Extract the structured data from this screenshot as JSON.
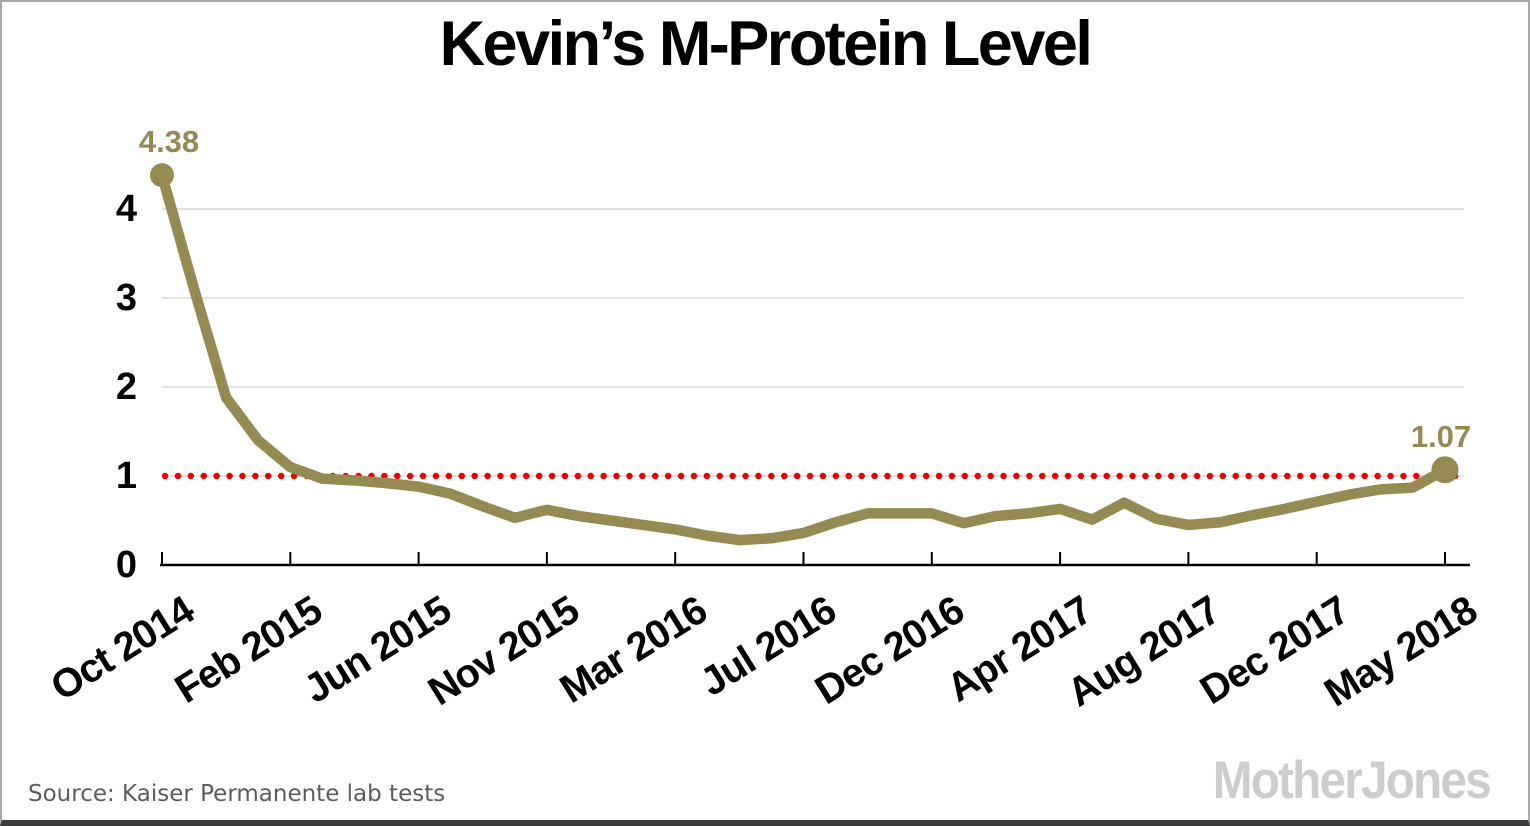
{
  "page": {
    "title": "Kevin’s M-Protein Level",
    "source": "Source: Kaiser Permanente lab tests",
    "logo": "MotherJones"
  },
  "chart_data": {
    "type": "line",
    "title": "Kevin’s M-Protein Level",
    "series": [
      {
        "name": "M-Protein level",
        "values": [
          4.38,
          3.1,
          1.88,
          1.4,
          1.1,
          0.97,
          0.95,
          0.92,
          0.88,
          0.8,
          0.66,
          0.53,
          0.62,
          0.55,
          0.5,
          0.45,
          0.4,
          0.33,
          0.28,
          0.3,
          0.36,
          0.48,
          0.58,
          0.58,
          0.58,
          0.47,
          0.55,
          0.58,
          0.63,
          0.51,
          0.7,
          0.52,
          0.45,
          0.48,
          0.56,
          0.63,
          0.71,
          0.79,
          0.85,
          0.87,
          1.07
        ]
      }
    ],
    "x_tick_labels": [
      "Oct 2014",
      "Feb 2015",
      "Jun 2015",
      "Nov 2015",
      "Mar 2016",
      "Jul 2016",
      "Dec 2016",
      "Apr 2017",
      "Aug 2017",
      "Dec 2017",
      "May 2018"
    ],
    "x_tick_indices": [
      0,
      4,
      8,
      12,
      16,
      20,
      24,
      28,
      32,
      36,
      40
    ],
    "y_ticks": [
      0,
      1,
      2,
      3,
      4
    ],
    "ylim": [
      0,
      4.5
    ],
    "grid": true,
    "legend": "none",
    "reference_line": {
      "y": 1,
      "style": "dotted"
    },
    "point_labels": [
      {
        "index": 0,
        "label": "4.38"
      },
      {
        "index": 40,
        "label": "1.07"
      }
    ],
    "colors": {
      "line": "#948A52",
      "point_labels": "#948A52",
      "reference": "#EE0000",
      "grid": "#D9D9D9",
      "axis": "#000000"
    }
  }
}
